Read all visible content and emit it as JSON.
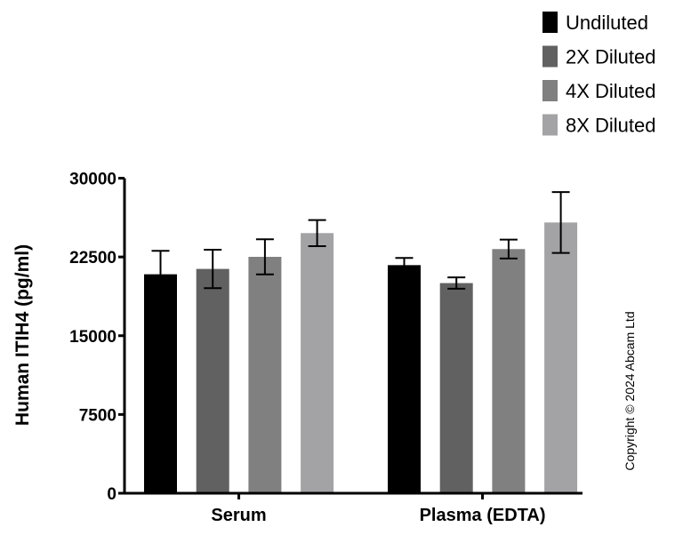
{
  "chart_data": {
    "type": "bar",
    "title": "",
    "xlabel": "",
    "ylabel": "Human ITIH4 (pg/ml)",
    "ylim": [
      0,
      30000
    ],
    "yticks": [
      0,
      7500,
      15000,
      22500,
      30000
    ],
    "ytick_labels": [
      "0",
      "7500",
      "15000",
      "22500",
      "30000"
    ],
    "grid": false,
    "legend_position": "top-right",
    "categories": [
      "Serum",
      "Plasma (EDTA)"
    ],
    "series": [
      {
        "name": "Undiluted",
        "color": "#000000",
        "values": [
          20850,
          21720
        ],
        "error": [
          2230,
          680
        ]
      },
      {
        "name": "2X Diluted",
        "color": "#616161",
        "values": [
          21360,
          20010
        ],
        "error": [
          1830,
          540
        ]
      },
      {
        "name": "4X Diluted",
        "color": "#808080",
        "values": [
          22510,
          23250
        ],
        "error": [
          1670,
          900
        ]
      },
      {
        "name": "8X Diluted",
        "color": "#a3a3a5",
        "values": [
          24770,
          25780
        ],
        "error": [
          1240,
          2900
        ]
      }
    ]
  },
  "copyright": "Copyright © 2024 Abcam Ltd"
}
